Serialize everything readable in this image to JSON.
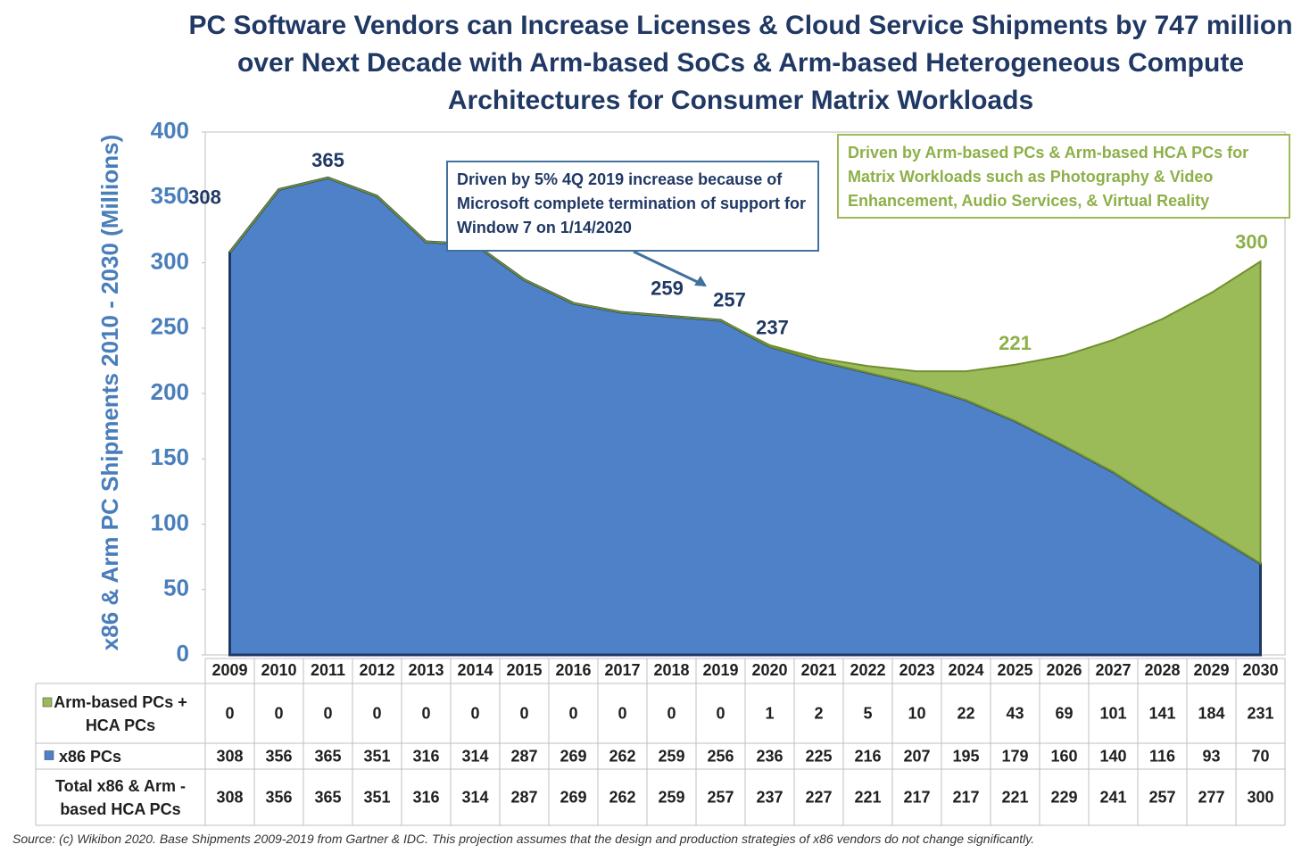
{
  "chart_data": {
    "type": "stacked_area",
    "title": "PC Software Vendors can Increase Licenses & Cloud Service Shipments by 747 million over Next Decade with Arm-based SoCs & Arm-based Heterogeneous Compute Architectures for Consumer Matrix Workloads",
    "y_label": "x86 & Arm PC Shipments 2010 - 2030 (Millions)",
    "categories": [
      "2009",
      "2010",
      "2011",
      "2012",
      "2013",
      "2014",
      "2015",
      "2016",
      "2017",
      "2018",
      "2019",
      "2020",
      "2021",
      "2022",
      "2023",
      "2024",
      "2025",
      "2026",
      "2027",
      "2028",
      "2029",
      "2030"
    ],
    "series": [
      {
        "name": "Arm-based PCs + HCA PCs",
        "color": "#9bbb59",
        "values": [
          0,
          0,
          0,
          0,
          0,
          0,
          0,
          0,
          0,
          0,
          0,
          1,
          2,
          5,
          10,
          22,
          43,
          69,
          101,
          141,
          184,
          231
        ]
      },
      {
        "name": "x86 PCs",
        "color": "#4f81c9",
        "values": [
          308,
          356,
          365,
          351,
          316,
          314,
          287,
          269,
          262,
          259,
          256,
          236,
          225,
          216,
          207,
          195,
          179,
          160,
          140,
          116,
          93,
          70
        ]
      }
    ],
    "totals": {
      "name": "Total x86 & Arm -based HCA PCs",
      "values": [
        308,
        356,
        365,
        351,
        316,
        314,
        287,
        269,
        262,
        259,
        257,
        237,
        227,
        221,
        217,
        217,
        221,
        229,
        241,
        257,
        277,
        300
      ]
    },
    "ylim": [
      0,
      400
    ],
    "yticks": [
      0,
      50,
      100,
      150,
      200,
      250,
      300,
      350,
      400
    ],
    "annotations": [
      "Driven by 5% 4Q 2019 increase because of Microsoft complete termination of support for Window 7 on 1/14/2020",
      "Driven by Arm-based PCs & Arm-based HCA PCs for Matrix Workloads such as Photography & Video Enhancement, Audio Services, & Virtual Reality"
    ],
    "source": "Source: (c) Wikibon 2020. Base Shipments 2009-2019 from Gartner & IDC. This projection assumes that the design and production strategies of x86 vendors do not change significantly."
  }
}
